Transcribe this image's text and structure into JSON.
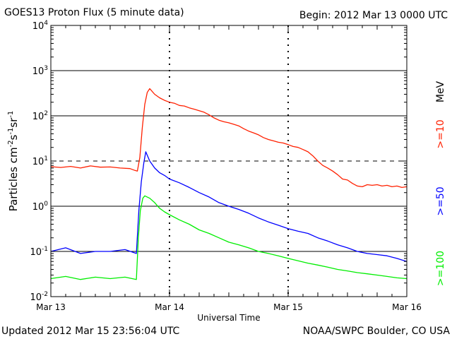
{
  "header": {
    "title": "GOES13 Proton Flux (5 minute data)",
    "begin": "Begin: 2012 Mar 13 0000 UTC"
  },
  "footer": {
    "updated": "Updated 2012 Mar 15 23:56:04 UTC",
    "credit": "NOAA/SWPC Boulder, CO USA"
  },
  "colors": {
    "ge10": "#ff2000",
    "ge50": "#0000ff",
    "ge100": "#00ee00",
    "axis": "#000000"
  },
  "chart_data": {
    "type": "line",
    "title": "GOES13 Proton Flux (5 minute data)",
    "xlabel": "Universal Time",
    "ylabel": "Particles cm-2 s-1 sr-1",
    "yscale": "log",
    "ylim": [
      0.01,
      10000
    ],
    "xlim_hours": [
      0,
      72
    ],
    "x_ticks": [
      {
        "label": "Mar 13",
        "hour": 0
      },
      {
        "label": "Mar 14",
        "hour": 24
      },
      {
        "label": "Mar 15",
        "hour": 48
      },
      {
        "label": "Mar 16",
        "hour": 72
      }
    ],
    "y_ticks": [
      {
        "base": "10",
        "exp": "-2",
        "value": 0.01
      },
      {
        "base": "10",
        "exp": "-1",
        "value": 0.1
      },
      {
        "base": "10",
        "exp": "0",
        "value": 1
      },
      {
        "base": "10",
        "exp": "1",
        "value": 10
      },
      {
        "base": "10",
        "exp": "2",
        "value": 100
      },
      {
        "base": "10",
        "exp": "3",
        "value": 1000
      },
      {
        "base": "10",
        "exp": "4",
        "value": 10000
      }
    ],
    "solid_gridlines": [
      0.1,
      1,
      100,
      1000
    ],
    "dashed_gridlines": [
      10
    ],
    "energy_axis_label": "MeV",
    "series": [
      {
        "name": ">=10",
        "color_key": "ge10",
        "points": [
          [
            0,
            7.5
          ],
          [
            2,
            7.2
          ],
          [
            4,
            7.6
          ],
          [
            6,
            7.0
          ],
          [
            8,
            7.8
          ],
          [
            10,
            7.3
          ],
          [
            12,
            7.4
          ],
          [
            14,
            7.0
          ],
          [
            16,
            6.8
          ],
          [
            17,
            6.2
          ],
          [
            17.5,
            6.0
          ],
          [
            18,
            12
          ],
          [
            18.5,
            55
          ],
          [
            19,
            180
          ],
          [
            19.5,
            330
          ],
          [
            20,
            400
          ],
          [
            21,
            300
          ],
          [
            22,
            250
          ],
          [
            23,
            220
          ],
          [
            24,
            200
          ],
          [
            25,
            190
          ],
          [
            26,
            170
          ],
          [
            27,
            165
          ],
          [
            28,
            150
          ],
          [
            29,
            140
          ],
          [
            30,
            130
          ],
          [
            31,
            120
          ],
          [
            32,
            105
          ],
          [
            33,
            90
          ],
          [
            34,
            80
          ],
          [
            35,
            74
          ],
          [
            36,
            70
          ],
          [
            37,
            65
          ],
          [
            38,
            60
          ],
          [
            39,
            52
          ],
          [
            40,
            46
          ],
          [
            41,
            42
          ],
          [
            42,
            38
          ],
          [
            43,
            33
          ],
          [
            44,
            30
          ],
          [
            45,
            28
          ],
          [
            46,
            26
          ],
          [
            47,
            25
          ],
          [
            48,
            23
          ],
          [
            49,
            21
          ],
          [
            50,
            20
          ],
          [
            51,
            18
          ],
          [
            52,
            16
          ],
          [
            53,
            13
          ],
          [
            54,
            10
          ],
          [
            55,
            8.0
          ],
          [
            56,
            7.0
          ],
          [
            57,
            6.0
          ],
          [
            58,
            5.0
          ],
          [
            59,
            4.0
          ],
          [
            60,
            3.8
          ],
          [
            61,
            3.2
          ],
          [
            62,
            2.8
          ],
          [
            63,
            2.7
          ],
          [
            64,
            3.0
          ],
          [
            65,
            2.9
          ],
          [
            66,
            3.0
          ],
          [
            67,
            2.8
          ],
          [
            68,
            2.9
          ],
          [
            69,
            2.7
          ],
          [
            70,
            2.8
          ],
          [
            71,
            2.6
          ],
          [
            72,
            2.7
          ]
        ]
      },
      {
        "name": ">=50",
        "color_key": "ge50",
        "points": [
          [
            0,
            0.1
          ],
          [
            3,
            0.12
          ],
          [
            6,
            0.09
          ],
          [
            9,
            0.1
          ],
          [
            12,
            0.1
          ],
          [
            15,
            0.11
          ],
          [
            17.3,
            0.09
          ],
          [
            17.8,
            0.8
          ],
          [
            18.3,
            3.5
          ],
          [
            18.8,
            9
          ],
          [
            19.2,
            16
          ],
          [
            20,
            10
          ],
          [
            21,
            7
          ],
          [
            22,
            5.5
          ],
          [
            23,
            4.8
          ],
          [
            24,
            4.0
          ],
          [
            26,
            3.3
          ],
          [
            28,
            2.6
          ],
          [
            30,
            2.0
          ],
          [
            32,
            1.6
          ],
          [
            34,
            1.2
          ],
          [
            36,
            1.0
          ],
          [
            38,
            0.85
          ],
          [
            40,
            0.7
          ],
          [
            42,
            0.55
          ],
          [
            44,
            0.45
          ],
          [
            46,
            0.38
          ],
          [
            48,
            0.32
          ],
          [
            50,
            0.28
          ],
          [
            52,
            0.25
          ],
          [
            54,
            0.2
          ],
          [
            56,
            0.17
          ],
          [
            58,
            0.14
          ],
          [
            60,
            0.12
          ],
          [
            62,
            0.1
          ],
          [
            64,
            0.09
          ],
          [
            66,
            0.085
          ],
          [
            68,
            0.08
          ],
          [
            70,
            0.07
          ],
          [
            72,
            0.06
          ]
        ]
      },
      {
        "name": ">=100",
        "color_key": "ge100",
        "points": [
          [
            0,
            0.025
          ],
          [
            3,
            0.028
          ],
          [
            6,
            0.024
          ],
          [
            9,
            0.027
          ],
          [
            12,
            0.025
          ],
          [
            15,
            0.027
          ],
          [
            17.3,
            0.024
          ],
          [
            17.7,
            0.2
          ],
          [
            18.1,
            0.8
          ],
          [
            18.6,
            1.5
          ],
          [
            19,
            1.7
          ],
          [
            20,
            1.5
          ],
          [
            21,
            1.2
          ],
          [
            22,
            0.9
          ],
          [
            23,
            0.75
          ],
          [
            24,
            0.65
          ],
          [
            26,
            0.5
          ],
          [
            28,
            0.4
          ],
          [
            30,
            0.3
          ],
          [
            32,
            0.25
          ],
          [
            34,
            0.2
          ],
          [
            36,
            0.16
          ],
          [
            38,
            0.14
          ],
          [
            40,
            0.12
          ],
          [
            42,
            0.1
          ],
          [
            44,
            0.09
          ],
          [
            46,
            0.08
          ],
          [
            48,
            0.07
          ],
          [
            50,
            0.062
          ],
          [
            52,
            0.055
          ],
          [
            54,
            0.05
          ],
          [
            56,
            0.045
          ],
          [
            58,
            0.04
          ],
          [
            60,
            0.037
          ],
          [
            62,
            0.034
          ],
          [
            64,
            0.032
          ],
          [
            66,
            0.03
          ],
          [
            68,
            0.028
          ],
          [
            70,
            0.026
          ],
          [
            72,
            0.025
          ]
        ]
      }
    ],
    "annotations": [
      "Particles cm⁻²s⁻¹sr⁻¹",
      "Universal Time"
    ]
  }
}
